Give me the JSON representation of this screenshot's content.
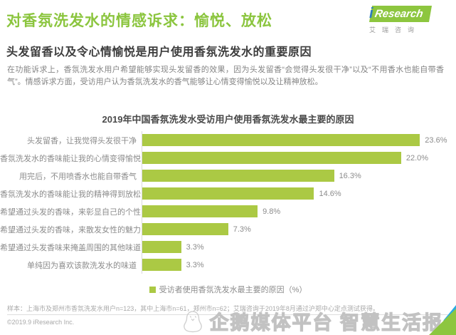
{
  "header": {
    "title": "对香氛洗发水的情感诉求：愉悦、放松",
    "logo": {
      "i": "i",
      "research": "Research",
      "cn": "艾瑞咨询"
    },
    "subtitle": "头发留香以及令心情愉悦是用户使用香氛洗发水的重要原因",
    "paragraph": "在功能诉求上，香氛洗发水用户希望能够实现头发留香的效果，因为头发留香“会觉得头发很干净”以及“不用香水也能自带香气”。情感诉求方面，受访用户认为香氛洗发水的香气能够让心情变得愉悦以及让精神放松。"
  },
  "chart_data": {
    "type": "bar",
    "orientation": "horizontal",
    "title": "2019年中国香氛洗发水受访用户使用香氛洗发水最主要的原因",
    "categories": [
      "头发留香，让我觉得头发很干净",
      "香氛洗发水的香味能让我的心情变得愉悦",
      "用完后，不用喷香水也能自带香气",
      "香氛洗发水的香味能让我的精神得到放松",
      "希望通过头发的香味，来彰显自己的个性",
      "希望通过头发的香味，来散发女性的魅力",
      "希望通过头发香味来掩盖周围的其他味道",
      "单纯因为喜欢该款洗发水的味道"
    ],
    "values": [
      23.6,
      22.0,
      16.3,
      14.6,
      9.8,
      7.3,
      3.3,
      3.3
    ],
    "value_labels": [
      "23.6%",
      "22.0%",
      "16.3%",
      "14.6%",
      "9.8%",
      "7.3%",
      "3.3%",
      "3.3%"
    ],
    "xlim": [
      0,
      26
    ],
    "grid": false,
    "bar_color": "#abc944",
    "legend": "受访者使用香氛洗发水最主要的原因（%）",
    "legend_position": "bottom-center"
  },
  "footer": {
    "note": "样本：上海市及郑州市香氛洗发水用户n=123，其中上海市n=61，郑州市n=62；艾瑞咨询于2019年8月通过沪郑中心定点测试获得。",
    "copyright": "©2019.9 iResearch Inc."
  },
  "watermark": {
    "text": "企鹅媒体平台 智慧生活报"
  },
  "colors": {
    "accent_green": "#8bc53e",
    "bar_green": "#abc944",
    "logo_blue": "#2f7bbf",
    "corner_blue": "#29abe2"
  }
}
